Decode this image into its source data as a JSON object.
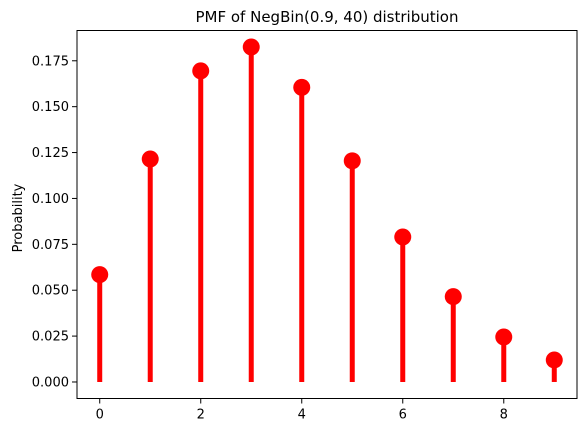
{
  "chart_data": {
    "type": "stem",
    "title": "PMF of NegBin(0.9, 40) distribution",
    "xlabel": "",
    "ylabel": "Probability",
    "x": [
      0,
      1,
      2,
      3,
      4,
      5,
      6,
      7,
      8,
      9
    ],
    "values": [
      0.0585,
      0.1215,
      0.1695,
      0.1825,
      0.1605,
      0.1205,
      0.079,
      0.0465,
      0.0245,
      0.012
    ],
    "xlim": [
      -0.45,
      9.45
    ],
    "ylim": [
      -0.009,
      0.1915
    ],
    "xticks": [
      0,
      2,
      4,
      6,
      8
    ],
    "xtick_labels": [
      "0",
      "2",
      "4",
      "6",
      "8"
    ],
    "yticks": [
      0.0,
      0.025,
      0.05,
      0.075,
      0.1,
      0.125,
      0.15,
      0.175
    ],
    "ytick_labels": [
      "0.000",
      "0.025",
      "0.050",
      "0.075",
      "0.100",
      "0.125",
      "0.150",
      "0.175"
    ],
    "color": "#ff0000",
    "grid": false,
    "legend": "none"
  }
}
